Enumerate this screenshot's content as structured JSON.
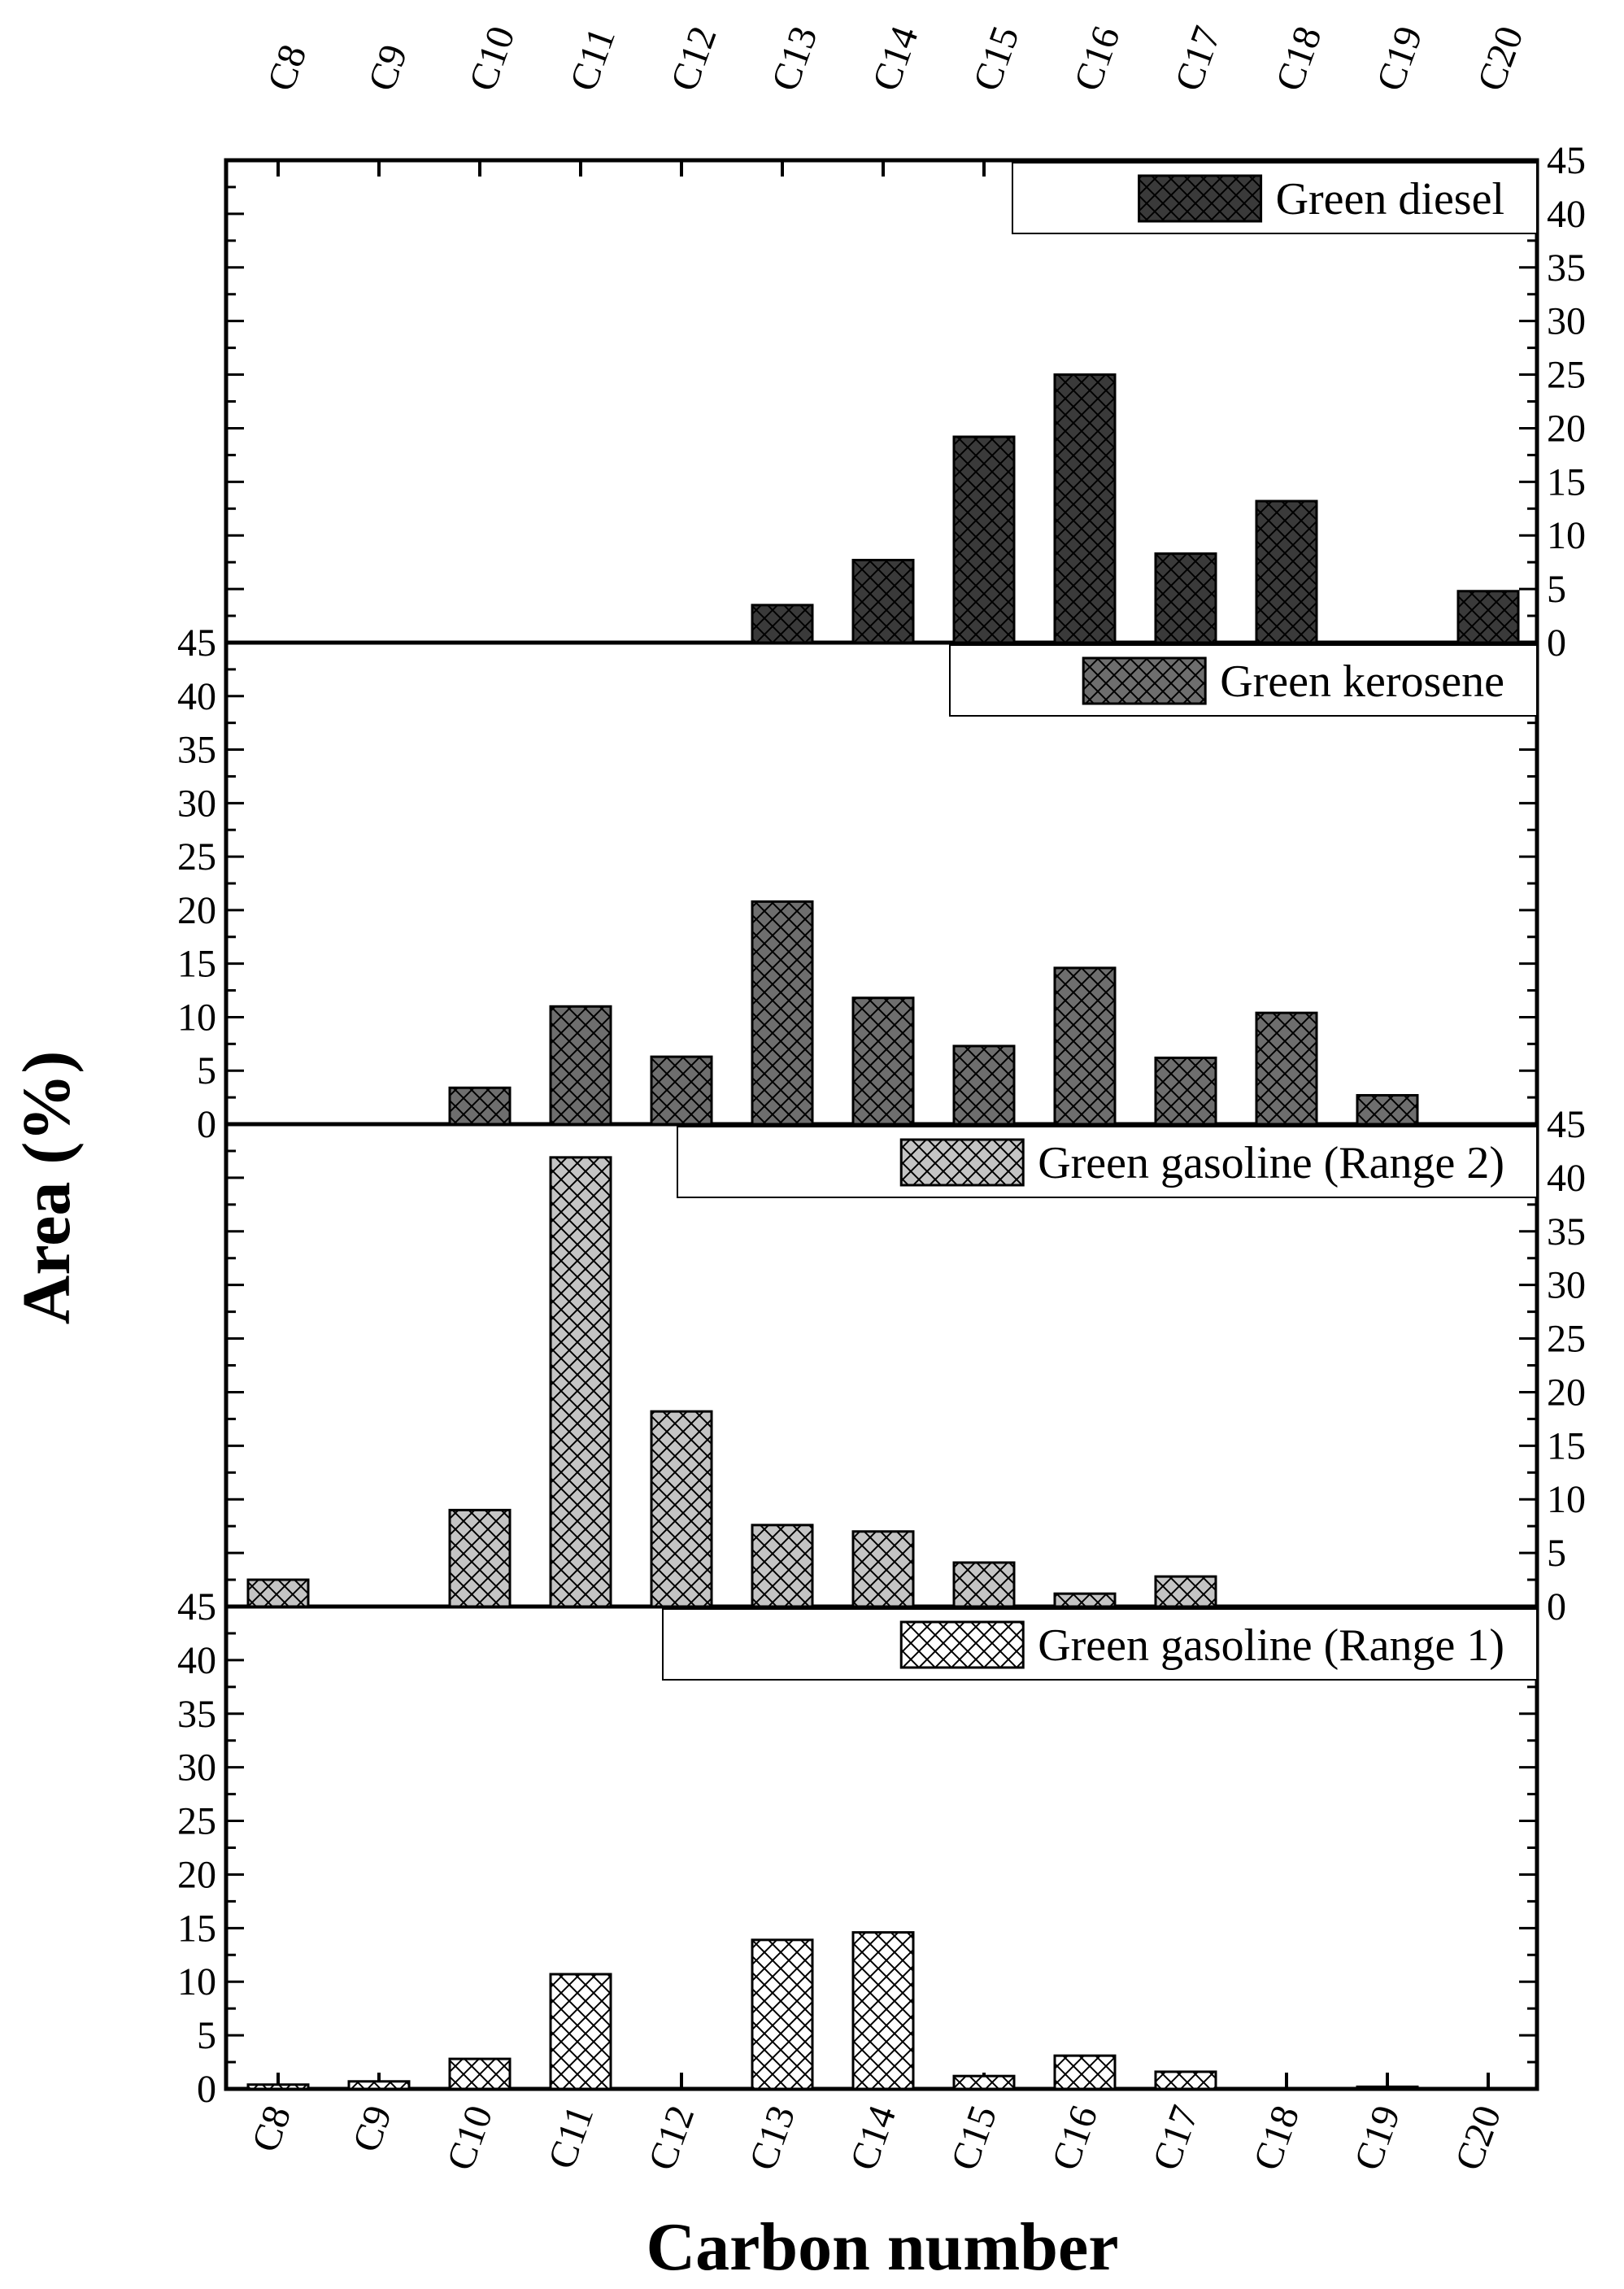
{
  "chart_data": {
    "type": "bar",
    "categories": [
      "C8",
      "C9",
      "C10",
      "C11",
      "C12",
      "C13",
      "C14",
      "C15",
      "C16",
      "C17",
      "C18",
      "C19",
      "C20"
    ],
    "xlabel": "Carbon number",
    "ylabel": "Area (%)",
    "ylim": [
      0,
      45
    ],
    "yticks": [
      0,
      5,
      10,
      15,
      20,
      25,
      30,
      35,
      40,
      45
    ],
    "grid": false,
    "legend_placement": "top-right of each panel",
    "series": [
      {
        "name": "Green diesel",
        "fill": "#3a3a3a",
        "values": [
          0,
          0,
          0,
          0,
          0,
          3.5,
          7.7,
          19.2,
          25,
          8.3,
          13.2,
          0,
          4.8
        ]
      },
      {
        "name": "Green kerosene",
        "fill": "#6e6e6e",
        "values": [
          0,
          0,
          3.4,
          11,
          6.3,
          20.8,
          11.8,
          7.3,
          14.6,
          6.2,
          10.4,
          2.7,
          0
        ]
      },
      {
        "name": "Green gasoline (Range 2)",
        "fill": "#c4c4c4",
        "values": [
          2.5,
          0,
          9,
          41.9,
          18.2,
          7.6,
          7,
          4.1,
          1.2,
          2.8,
          0,
          0,
          0
        ]
      },
      {
        "name": "Green gasoline (Range 1)",
        "fill": "#ffffff",
        "values": [
          0.4,
          0.7,
          2.8,
          10.7,
          0,
          13.9,
          14.6,
          1.2,
          3.1,
          1.6,
          0,
          0.2,
          0
        ]
      }
    ]
  }
}
